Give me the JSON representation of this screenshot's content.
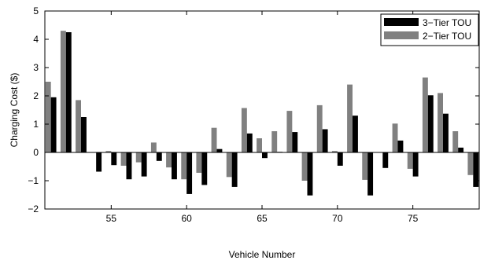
{
  "chart_data": {
    "type": "bar",
    "title": "",
    "xlabel": "Vehicle Number",
    "ylabel": "Charging Cost ($)",
    "xlim": [
      50.6,
      79.4
    ],
    "ylim": [
      -2,
      5
    ],
    "xticks": [
      55,
      60,
      65,
      70,
      75
    ],
    "yticks": [
      -2,
      -1,
      0,
      1,
      2,
      3,
      4,
      5
    ],
    "grid": false,
    "legend_position": "top-right",
    "categories": [
      51,
      52,
      53,
      54,
      55,
      56,
      57,
      58,
      59,
      60,
      61,
      62,
      63,
      64,
      65,
      66,
      67,
      68,
      69,
      70,
      71,
      72,
      73,
      74,
      75,
      76,
      77,
      78,
      79
    ],
    "series": [
      {
        "name": "3−Tier TOU",
        "color": "#000000",
        "values": [
          1.95,
          4.25,
          1.25,
          -0.68,
          -0.45,
          -0.95,
          -0.85,
          -0.3,
          -0.95,
          -1.47,
          -1.15,
          0.12,
          -1.22,
          0.67,
          -0.2,
          0.02,
          0.72,
          -1.52,
          0.82,
          -0.47,
          1.3,
          -1.52,
          -0.55,
          0.42,
          -0.85,
          2.02,
          1.37,
          0.17,
          -1.22
        ]
      },
      {
        "name": "2−Tier TOU",
        "color": "#808080",
        "values": [
          2.5,
          4.3,
          1.85,
          0.0,
          0.05,
          -0.47,
          -0.35,
          0.35,
          -0.53,
          -0.95,
          -0.72,
          0.87,
          -0.87,
          1.57,
          0.5,
          0.75,
          1.47,
          -1.0,
          1.67,
          0.05,
          2.4,
          -0.97,
          0.0,
          1.02,
          -0.58,
          2.65,
          2.1,
          0.75,
          -0.8
        ]
      }
    ]
  }
}
